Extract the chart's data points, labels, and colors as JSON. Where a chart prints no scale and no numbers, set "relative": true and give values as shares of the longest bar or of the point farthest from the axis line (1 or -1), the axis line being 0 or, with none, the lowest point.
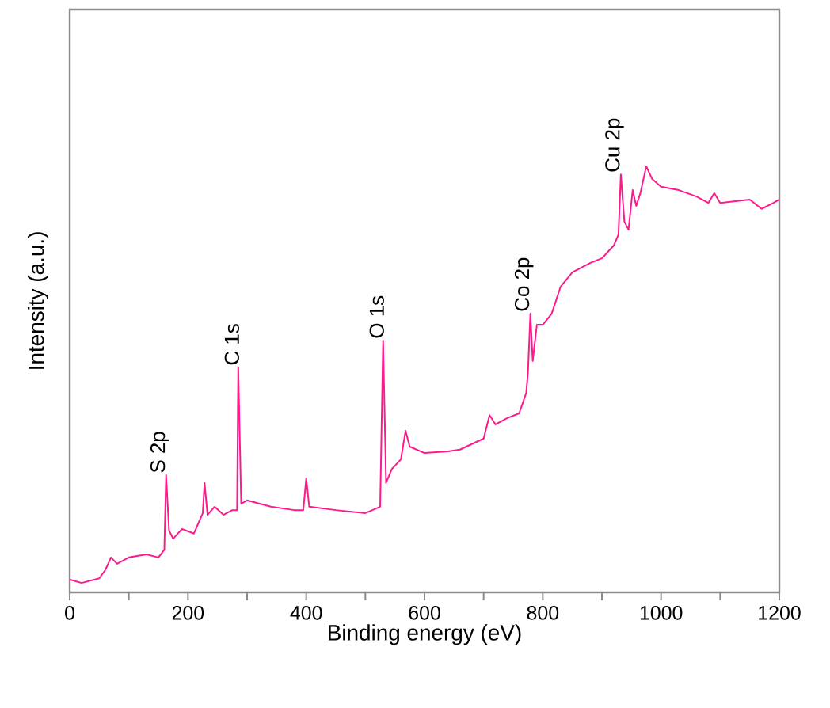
{
  "chart_data": {
    "type": "line",
    "relative": true,
    "xlabel": "Binding energy (eV)",
    "ylabel": "Intensity (a.u.)",
    "xlim": [
      0,
      1200
    ],
    "xticks": [
      0,
      200,
      400,
      600,
      800,
      1000,
      1200
    ],
    "series": [
      {
        "color": "#ff1a8c",
        "x": [
          0,
          20,
          50,
          60,
          70,
          80,
          100,
          130,
          150,
          160,
          163,
          168,
          175,
          190,
          210,
          225,
          228,
          233,
          245,
          260,
          275,
          283,
          285,
          290,
          300,
          340,
          380,
          395,
          400,
          405,
          450,
          500,
          525,
          530,
          535,
          545,
          560,
          568,
          575,
          600,
          640,
          660,
          700,
          710,
          720,
          740,
          760,
          772,
          775,
          779,
          783,
          790,
          800,
          815,
          830,
          850,
          880,
          900,
          920,
          928,
          932,
          938,
          945,
          952,
          958,
          965,
          975,
          985,
          1000,
          1030,
          1060,
          1080,
          1090,
          1100,
          1150,
          1170,
          1190,
          1200
        ],
        "values": [
          0.03,
          0.022,
          0.033,
          0.052,
          0.082,
          0.067,
          0.082,
          0.089,
          0.082,
          0.1,
          0.275,
          0.145,
          0.126,
          0.149,
          0.138,
          0.186,
          0.257,
          0.182,
          0.201,
          0.182,
          0.193,
          0.193,
          0.528,
          0.208,
          0.216,
          0.201,
          0.193,
          0.193,
          0.268,
          0.201,
          0.193,
          0.186,
          0.201,
          0.591,
          0.257,
          0.29,
          0.312,
          0.379,
          0.342,
          0.327,
          0.331,
          0.335,
          0.361,
          0.416,
          0.394,
          0.409,
          0.42,
          0.468,
          0.517,
          0.654,
          0.543,
          0.628,
          0.628,
          0.654,
          0.717,
          0.751,
          0.773,
          0.784,
          0.814,
          0.84,
          0.981,
          0.87,
          0.851,
          0.944,
          0.907,
          0.937,
          1.0,
          0.97,
          0.952,
          0.944,
          0.929,
          0.914,
          0.937,
          0.914,
          0.922,
          0.9,
          0.914,
          0.922
        ]
      }
    ],
    "annotations": [
      {
        "text": "S 2p",
        "x": 163,
        "y": 0.275
      },
      {
        "text": "C 1s",
        "x": 285,
        "y": 0.528
      },
      {
        "text": "O 1s",
        "x": 530,
        "y": 0.591
      },
      {
        "text": "Co 2p",
        "x": 779,
        "y": 0.654
      },
      {
        "text": "Cu 2p",
        "x": 932,
        "y": 0.981
      }
    ]
  }
}
